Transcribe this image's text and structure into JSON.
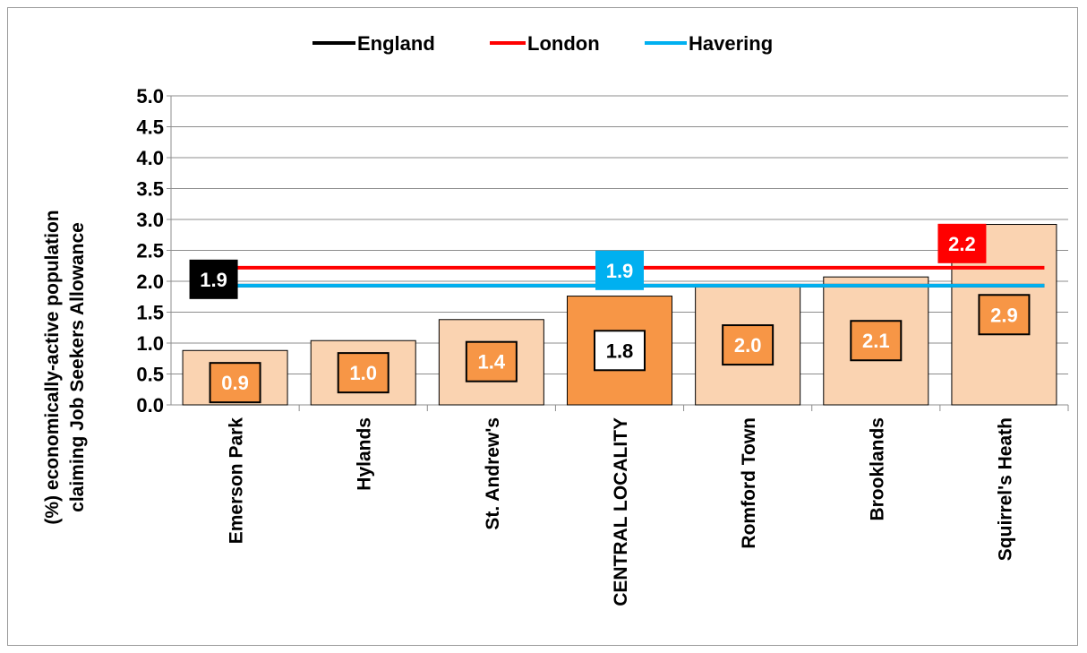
{
  "chart_data": {
    "type": "bar",
    "categories": [
      "Emerson Park",
      "Hylands",
      "St. Andrew's",
      "CENTRAL LOCALITY",
      "Romford Town",
      "Brooklands",
      "Squirrel's Heath"
    ],
    "values": [
      0.88,
      1.04,
      1.38,
      1.76,
      1.95,
      2.07,
      2.92
    ],
    "data_labels": [
      "0.9",
      "1.0",
      "1.4",
      "1.8",
      "2.0",
      "2.1",
      "2.9"
    ],
    "highlight_category": "CENTRAL LOCALITY",
    "ylabel": "(%) economically-active population claiming Job Seekers Allowance",
    "ylim": [
      0,
      5.0
    ],
    "yticks": [
      "0.0",
      "0.5",
      "1.0",
      "1.5",
      "2.0",
      "2.5",
      "3.0",
      "3.5",
      "4.0",
      "4.5",
      "5.0"
    ],
    "grid": true,
    "legend": "top",
    "reference_lines": [
      {
        "name": "England",
        "value": 1.93,
        "label": "1.9",
        "color": "#000000"
      },
      {
        "name": "London",
        "value": 2.22,
        "label": "2.2",
        "color": "#ff0000"
      },
      {
        "name": "Havering",
        "value": 1.93,
        "label": "1.9",
        "color": "#00b0f0"
      }
    ],
    "colors": {
      "bar": "#fad3b1",
      "bar_highlight": "#f79646",
      "label_box": "#f79646",
      "label_box_highlight": "#ffffff"
    }
  }
}
